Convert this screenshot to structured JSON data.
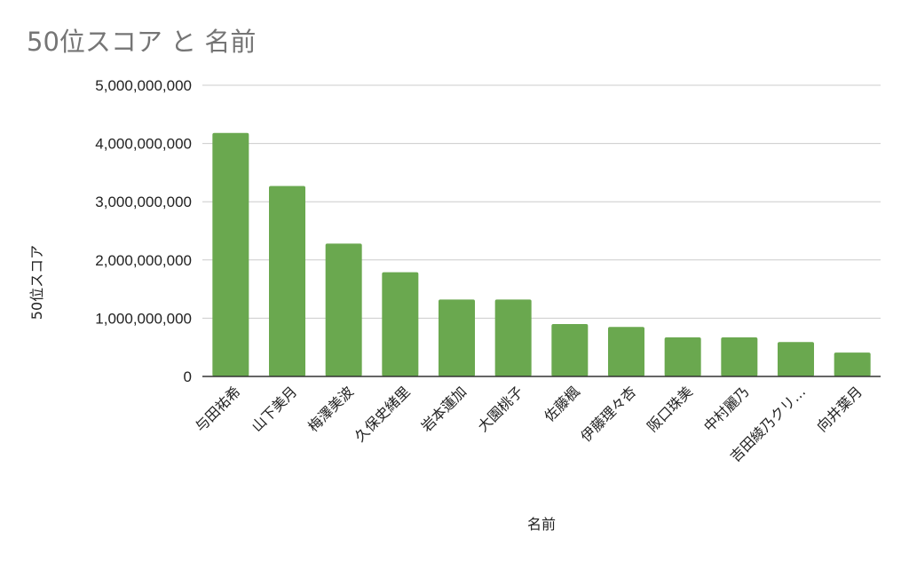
{
  "chart_data": {
    "type": "bar",
    "title": "50位スコア と 名前",
    "xlabel": "名前",
    "ylabel": "50位スコア",
    "ylim": [
      0,
      5000000000
    ],
    "yticks": [
      0,
      1000000000,
      2000000000,
      3000000000,
      4000000000,
      5000000000
    ],
    "ytick_labels": [
      "0",
      "1,000,000,000",
      "2,000,000,000",
      "3,000,000,000",
      "4,000,000,000",
      "5,000,000,000"
    ],
    "categories": [
      "与田祐希",
      "山下美月",
      "梅澤美波",
      "久保史緒里",
      "岩本蓮加",
      "大園桃子",
      "佐藤楓",
      "伊藤理々杏",
      "阪口珠美",
      "中村麗乃",
      "吉田綾乃クリ…",
      "向井葉月"
    ],
    "values": [
      4180000000,
      3270000000,
      2280000000,
      1790000000,
      1320000000,
      1320000000,
      900000000,
      850000000,
      670000000,
      670000000,
      590000000,
      410000000
    ],
    "bar_color": "#6aa84f",
    "grid": true,
    "legend": "none"
  }
}
